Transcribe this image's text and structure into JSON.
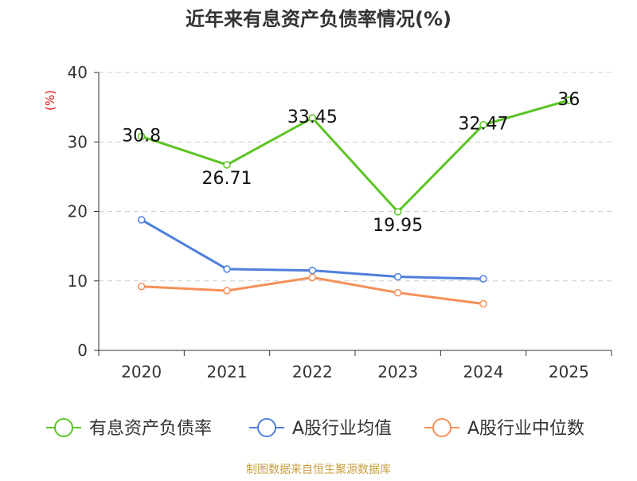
{
  "chart_data": {
    "type": "line",
    "title": "近年来有息资产负债率情况(%)",
    "ylabel": "(%)",
    "xlabel": "",
    "categories": [
      "2020",
      "2021",
      "2022",
      "2023",
      "2024",
      "2025"
    ],
    "ylim": [
      0,
      40
    ],
    "yticks": [
      0,
      10,
      20,
      30,
      40
    ],
    "grid": true,
    "legend_position": "bottom",
    "series": [
      {
        "name": "有息资产负债率",
        "color": "#5cc424",
        "values": [
          30.8,
          26.71,
          33.45,
          19.95,
          32.47,
          36
        ],
        "labels": [
          "30.8",
          "26.71",
          "33.45",
          "19.95",
          "32.47",
          "36"
        ],
        "show_labels": true
      },
      {
        "name": "A股行业均值",
        "color": "#4e7fdb",
        "values": [
          18.8,
          11.7,
          11.5,
          10.6,
          10.3,
          null
        ],
        "show_labels": false
      },
      {
        "name": "A股行业中位数",
        "color": "#f5905a",
        "values": [
          9.2,
          8.6,
          10.5,
          8.3,
          6.7,
          null
        ],
        "show_labels": false
      }
    ],
    "source": "制图数据来自恒生聚源数据库"
  },
  "colors": {
    "title": "#333333",
    "axis": "#333333",
    "grid": "#cccccc",
    "ylabel": "#e01010",
    "source": "#c8a040"
  }
}
